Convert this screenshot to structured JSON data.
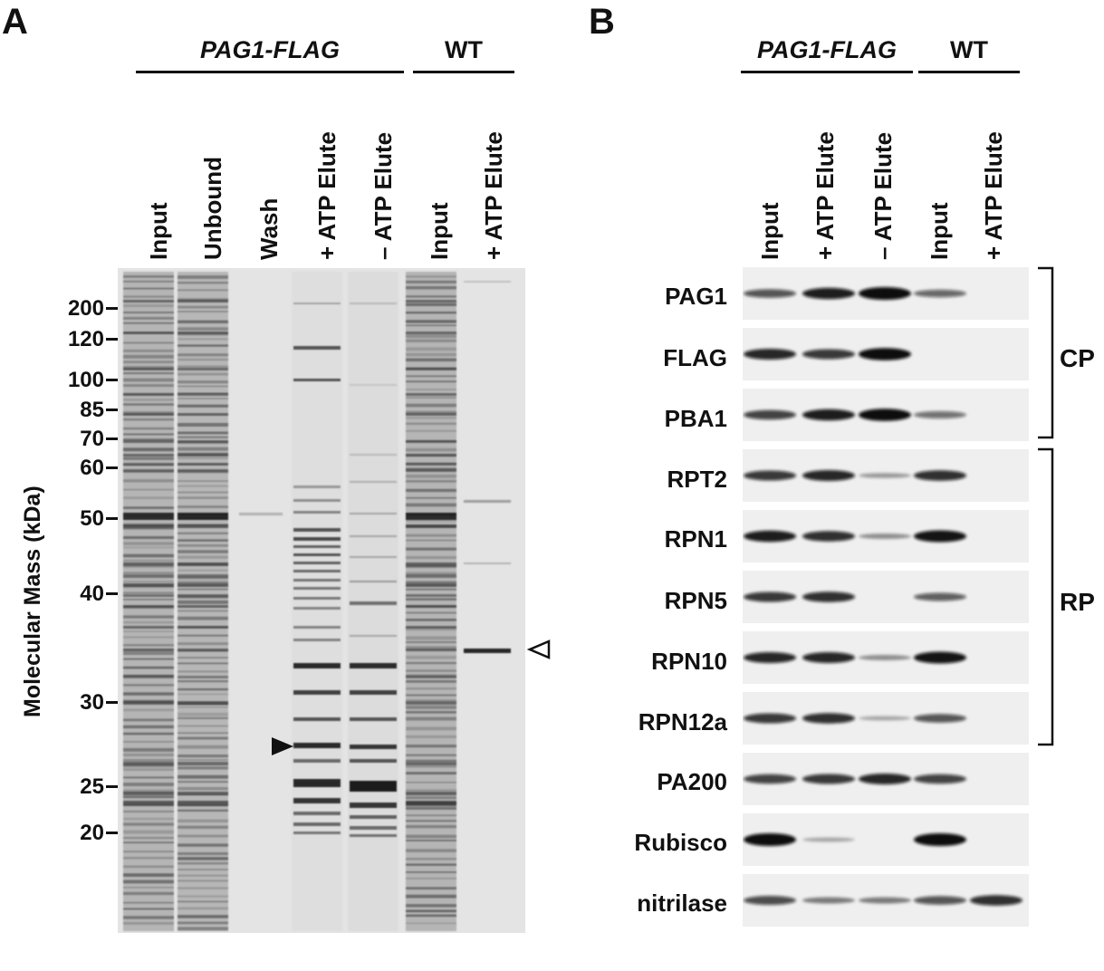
{
  "panel_a": {
    "letter": "A",
    "groups": [
      {
        "label": "PAG1-FLAG",
        "italic": true
      },
      {
        "label": "WT",
        "italic": false
      }
    ],
    "lanes": [
      "Input",
      "Unbound",
      "Wash",
      "+ ATP Elute",
      "– ATP Elute",
      "Input",
      "+ ATP Elute"
    ],
    "y_axis_label": "Molecular Mass (kDa)",
    "mw_markers": [
      "200",
      "120",
      "100",
      "85",
      "70",
      "60",
      "50",
      "40",
      "30",
      "25",
      "20"
    ]
  },
  "panel_b": {
    "letter": "B",
    "groups": [
      {
        "label": "PAG1-FLAG",
        "italic": true
      },
      {
        "label": "WT",
        "italic": false
      }
    ],
    "lanes": [
      "Input",
      "+ ATP Elute",
      "– ATP Elute",
      "Input",
      "+ ATP Elute"
    ],
    "blots": [
      {
        "label": "PAG1",
        "intensities": [
          0.55,
          0.85,
          1.0,
          0.45,
          0.0
        ]
      },
      {
        "label": "FLAG",
        "intensities": [
          0.8,
          0.7,
          0.95,
          0.0,
          0.0
        ]
      },
      {
        "label": "PBA1",
        "intensities": [
          0.65,
          0.85,
          0.95,
          0.4,
          0.0
        ]
      },
      {
        "label": "RPT2",
        "intensities": [
          0.7,
          0.8,
          0.15,
          0.75,
          0.0
        ]
      },
      {
        "label": "RPN1",
        "intensities": [
          0.85,
          0.75,
          0.2,
          0.9,
          0.0
        ]
      },
      {
        "label": "RPN5",
        "intensities": [
          0.7,
          0.75,
          0.0,
          0.5,
          0.0
        ]
      },
      {
        "label": "RPN10",
        "intensities": [
          0.8,
          0.8,
          0.2,
          0.9,
          0.0
        ]
      },
      {
        "label": "RPN12a",
        "intensities": [
          0.7,
          0.75,
          0.08,
          0.55,
          0.0
        ]
      },
      {
        "label": "PA200",
        "intensities": [
          0.65,
          0.7,
          0.8,
          0.65,
          0.0
        ]
      },
      {
        "label": "Rubisco",
        "intensities": [
          1.0,
          0.08,
          0.0,
          1.0,
          0.0
        ]
      },
      {
        "label": "nitrilase",
        "intensities": [
          0.6,
          0.3,
          0.3,
          0.55,
          0.75
        ]
      }
    ],
    "brackets": [
      {
        "label": "CP"
      },
      {
        "label": "RP"
      }
    ]
  }
}
